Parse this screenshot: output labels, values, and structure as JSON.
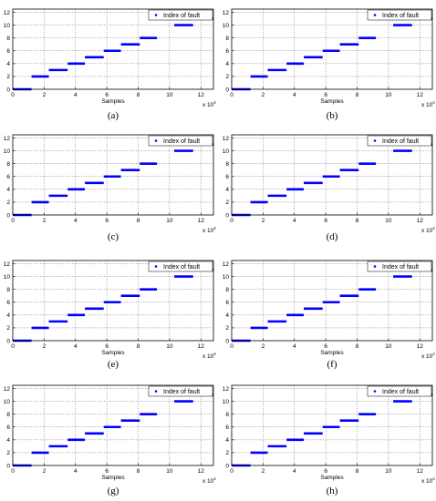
{
  "chart_data": [
    {
      "panel": "(a)",
      "type": "scatter",
      "xlabel": "Samples",
      "ylabel": "",
      "x_multiplier": "x 10",
      "x_multiplier_exp": "4",
      "xlim": [
        0,
        12.8
      ],
      "ylim": [
        0,
        12.5
      ],
      "x_ticks": [
        0,
        2,
        4,
        6,
        8,
        10,
        12
      ],
      "y_ticks": [
        0,
        2,
        4,
        6,
        8,
        10,
        12
      ],
      "grid": true,
      "legend_position": "top-right",
      "series": [
        {
          "name": "Index of fault",
          "color": "#0000ff",
          "segments": [
            {
              "x_start": 0.0,
              "x_end": 1.2,
              "y": 0
            },
            {
              "x_start": 1.2,
              "x_end": 2.3,
              "y": 2
            },
            {
              "x_start": 2.3,
              "x_end": 3.5,
              "y": 3
            },
            {
              "x_start": 3.5,
              "x_end": 4.6,
              "y": 4
            },
            {
              "x_start": 4.6,
              "x_end": 5.8,
              "y": 5
            },
            {
              "x_start": 5.8,
              "x_end": 6.9,
              "y": 6
            },
            {
              "x_start": 6.9,
              "x_end": 8.1,
              "y": 7
            },
            {
              "x_start": 8.1,
              "x_end": 9.2,
              "y": 8
            },
            {
              "x_start": 10.3,
              "x_end": 11.5,
              "y": 10
            },
            {
              "x_start": 11.5,
              "x_end": 12.8,
              "y": 11
            }
          ]
        }
      ]
    },
    {
      "panel": "(b)",
      "type": "scatter",
      "xlabel": "Samples",
      "ylabel": "",
      "x_multiplier": "x 10",
      "x_multiplier_exp": "4",
      "xlim": [
        0,
        12.8
      ],
      "ylim": [
        0,
        12.5
      ],
      "x_ticks": [
        0,
        2,
        4,
        6,
        8,
        10,
        12
      ],
      "y_ticks": [
        0,
        2,
        4,
        6,
        8,
        10,
        12
      ],
      "grid": true,
      "legend_position": "top-right",
      "series": [
        {
          "name": "Index of fault",
          "color": "#0000ff",
          "segments": [
            {
              "x_start": 0.0,
              "x_end": 1.2,
              "y": 0
            },
            {
              "x_start": 1.2,
              "x_end": 2.3,
              "y": 2
            },
            {
              "x_start": 2.3,
              "x_end": 3.5,
              "y": 3
            },
            {
              "x_start": 3.5,
              "x_end": 4.6,
              "y": 4
            },
            {
              "x_start": 4.6,
              "x_end": 5.8,
              "y": 5
            },
            {
              "x_start": 5.8,
              "x_end": 6.9,
              "y": 6
            },
            {
              "x_start": 6.9,
              "x_end": 8.1,
              "y": 7
            },
            {
              "x_start": 8.1,
              "x_end": 9.2,
              "y": 8
            },
            {
              "x_start": 10.3,
              "x_end": 11.5,
              "y": 10
            },
            {
              "x_start": 11.5,
              "x_end": 12.8,
              "y": 11
            }
          ]
        }
      ]
    },
    {
      "panel": "(c)",
      "type": "scatter",
      "xlabel": "",
      "ylabel": "",
      "x_multiplier": "x 10",
      "x_multiplier_exp": "4",
      "xlim": [
        0,
        12.8
      ],
      "ylim": [
        0,
        12.5
      ],
      "x_ticks": [
        0,
        2,
        4,
        6,
        8,
        10,
        12
      ],
      "y_ticks": [
        0,
        2,
        4,
        6,
        8,
        10,
        12
      ],
      "grid": true,
      "legend_position": "top-right",
      "series": [
        {
          "name": "Index of fault",
          "color": "#0000ff",
          "segments": [
            {
              "x_start": 0.0,
              "x_end": 1.2,
              "y": 0
            },
            {
              "x_start": 1.2,
              "x_end": 2.3,
              "y": 2
            },
            {
              "x_start": 2.3,
              "x_end": 3.5,
              "y": 3
            },
            {
              "x_start": 3.5,
              "x_end": 4.6,
              "y": 4
            },
            {
              "x_start": 4.6,
              "x_end": 5.8,
              "y": 5
            },
            {
              "x_start": 5.8,
              "x_end": 6.9,
              "y": 6
            },
            {
              "x_start": 6.9,
              "x_end": 8.1,
              "y": 7
            },
            {
              "x_start": 8.1,
              "x_end": 9.2,
              "y": 8
            },
            {
              "x_start": 10.3,
              "x_end": 11.5,
              "y": 10
            },
            {
              "x_start": 11.5,
              "x_end": 12.8,
              "y": 11
            }
          ]
        }
      ]
    },
    {
      "panel": "(d)",
      "type": "scatter",
      "xlabel": "",
      "ylabel": "",
      "x_multiplier": "x 10",
      "x_multiplier_exp": "4",
      "xlim": [
        0,
        12.8
      ],
      "ylim": [
        0,
        12.5
      ],
      "x_ticks": [
        0,
        2,
        4,
        6,
        8,
        10,
        12
      ],
      "y_ticks": [
        0,
        2,
        4,
        6,
        8,
        10,
        12
      ],
      "grid": true,
      "legend_position": "top-right",
      "series": [
        {
          "name": "Index of fault",
          "color": "#0000ff",
          "segments": [
            {
              "x_start": 0.0,
              "x_end": 1.2,
              "y": 0
            },
            {
              "x_start": 1.2,
              "x_end": 2.3,
              "y": 2
            },
            {
              "x_start": 2.3,
              "x_end": 3.5,
              "y": 3
            },
            {
              "x_start": 3.5,
              "x_end": 4.6,
              "y": 4
            },
            {
              "x_start": 4.6,
              "x_end": 5.8,
              "y": 5
            },
            {
              "x_start": 5.8,
              "x_end": 6.9,
              "y": 6
            },
            {
              "x_start": 6.9,
              "x_end": 8.1,
              "y": 7
            },
            {
              "x_start": 8.1,
              "x_end": 9.2,
              "y": 8
            },
            {
              "x_start": 10.3,
              "x_end": 11.5,
              "y": 10
            },
            {
              "x_start": 11.5,
              "x_end": 12.8,
              "y": 11
            }
          ]
        }
      ]
    },
    {
      "panel": "(e)",
      "type": "scatter",
      "xlabel": "Samples",
      "ylabel": "",
      "x_multiplier": "x 10",
      "x_multiplier_exp": "4",
      "xlim": [
        0,
        12.8
      ],
      "ylim": [
        0,
        12.5
      ],
      "x_ticks": [
        0,
        2,
        4,
        6,
        8,
        10,
        12
      ],
      "y_ticks": [
        0,
        2,
        4,
        6,
        8,
        10,
        12
      ],
      "grid": true,
      "legend_position": "top-right",
      "series": [
        {
          "name": "Index of fault",
          "color": "#0000ff",
          "segments": [
            {
              "x_start": 0.0,
              "x_end": 1.2,
              "y": 0
            },
            {
              "x_start": 1.2,
              "x_end": 2.3,
              "y": 2
            },
            {
              "x_start": 2.3,
              "x_end": 3.5,
              "y": 3
            },
            {
              "x_start": 3.5,
              "x_end": 4.6,
              "y": 4
            },
            {
              "x_start": 4.6,
              "x_end": 5.8,
              "y": 5
            },
            {
              "x_start": 5.8,
              "x_end": 6.9,
              "y": 6
            },
            {
              "x_start": 6.9,
              "x_end": 8.1,
              "y": 7
            },
            {
              "x_start": 8.1,
              "x_end": 9.2,
              "y": 8
            },
            {
              "x_start": 10.3,
              "x_end": 11.5,
              "y": 10
            },
            {
              "x_start": 11.5,
              "x_end": 12.8,
              "y": 11
            }
          ]
        }
      ]
    },
    {
      "panel": "(f)",
      "type": "scatter",
      "xlabel": "Samples",
      "ylabel": "",
      "x_multiplier": "x 10",
      "x_multiplier_exp": "4",
      "xlim": [
        0,
        12.8
      ],
      "ylim": [
        0,
        12.5
      ],
      "x_ticks": [
        0,
        2,
        4,
        6,
        8,
        10,
        12
      ],
      "y_ticks": [
        0,
        2,
        4,
        6,
        8,
        10,
        12
      ],
      "grid": true,
      "legend_position": "top-right",
      "series": [
        {
          "name": "Index of fault",
          "color": "#0000ff",
          "segments": [
            {
              "x_start": 0.0,
              "x_end": 1.2,
              "y": 0
            },
            {
              "x_start": 1.2,
              "x_end": 2.3,
              "y": 2
            },
            {
              "x_start": 2.3,
              "x_end": 3.5,
              "y": 3
            },
            {
              "x_start": 3.5,
              "x_end": 4.6,
              "y": 4
            },
            {
              "x_start": 4.6,
              "x_end": 5.8,
              "y": 5
            },
            {
              "x_start": 5.8,
              "x_end": 6.9,
              "y": 6
            },
            {
              "x_start": 6.9,
              "x_end": 8.1,
              "y": 7
            },
            {
              "x_start": 8.1,
              "x_end": 9.2,
              "y": 8
            },
            {
              "x_start": 10.3,
              "x_end": 11.5,
              "y": 10
            },
            {
              "x_start": 11.5,
              "x_end": 12.8,
              "y": 11
            }
          ]
        }
      ]
    },
    {
      "panel": "(g)",
      "type": "scatter",
      "xlabel": "Samples",
      "ylabel": "",
      "x_multiplier": "x 10",
      "x_multiplier_exp": "4",
      "xlim": [
        0,
        12.8
      ],
      "ylim": [
        0,
        12.5
      ],
      "x_ticks": [
        0,
        2,
        4,
        6,
        8,
        10,
        12
      ],
      "y_ticks": [
        0,
        2,
        4,
        6,
        8,
        10,
        12
      ],
      "grid": true,
      "legend_position": "top-right",
      "series": [
        {
          "name": "Index of fault",
          "color": "#0000ff",
          "segments": [
            {
              "x_start": 0.0,
              "x_end": 1.2,
              "y": 0
            },
            {
              "x_start": 1.2,
              "x_end": 2.3,
              "y": 2
            },
            {
              "x_start": 2.3,
              "x_end": 3.5,
              "y": 3
            },
            {
              "x_start": 3.5,
              "x_end": 4.6,
              "y": 4
            },
            {
              "x_start": 4.6,
              "x_end": 5.8,
              "y": 5
            },
            {
              "x_start": 5.8,
              "x_end": 6.9,
              "y": 6
            },
            {
              "x_start": 6.9,
              "x_end": 8.1,
              "y": 7
            },
            {
              "x_start": 8.1,
              "x_end": 9.2,
              "y": 8
            },
            {
              "x_start": 10.3,
              "x_end": 11.5,
              "y": 10
            },
            {
              "x_start": 11.5,
              "x_end": 12.8,
              "y": 11
            }
          ]
        }
      ]
    },
    {
      "panel": "(h)",
      "type": "scatter",
      "xlabel": "Samples",
      "ylabel": "",
      "x_multiplier": "x 10",
      "x_multiplier_exp": "4",
      "xlim": [
        0,
        12.8
      ],
      "ylim": [
        0,
        12.5
      ],
      "x_ticks": [
        0,
        2,
        4,
        6,
        8,
        10,
        12
      ],
      "y_ticks": [
        0,
        2,
        4,
        6,
        8,
        10,
        12
      ],
      "grid": true,
      "legend_position": "top-right",
      "series": [
        {
          "name": "Index of fault",
          "color": "#0000ff",
          "segments": [
            {
              "x_start": 0.0,
              "x_end": 1.2,
              "y": 0
            },
            {
              "x_start": 1.2,
              "x_end": 2.3,
              "y": 2
            },
            {
              "x_start": 2.3,
              "x_end": 3.5,
              "y": 3
            },
            {
              "x_start": 3.5,
              "x_end": 4.6,
              "y": 4
            },
            {
              "x_start": 4.6,
              "x_end": 5.8,
              "y": 5
            },
            {
              "x_start": 5.8,
              "x_end": 6.9,
              "y": 6
            },
            {
              "x_start": 6.9,
              "x_end": 8.1,
              "y": 7
            },
            {
              "x_start": 8.1,
              "x_end": 9.2,
              "y": 8
            },
            {
              "x_start": 10.3,
              "x_end": 11.5,
              "y": 10
            },
            {
              "x_start": 11.5,
              "x_end": 12.8,
              "y": 11
            }
          ]
        }
      ]
    }
  ]
}
